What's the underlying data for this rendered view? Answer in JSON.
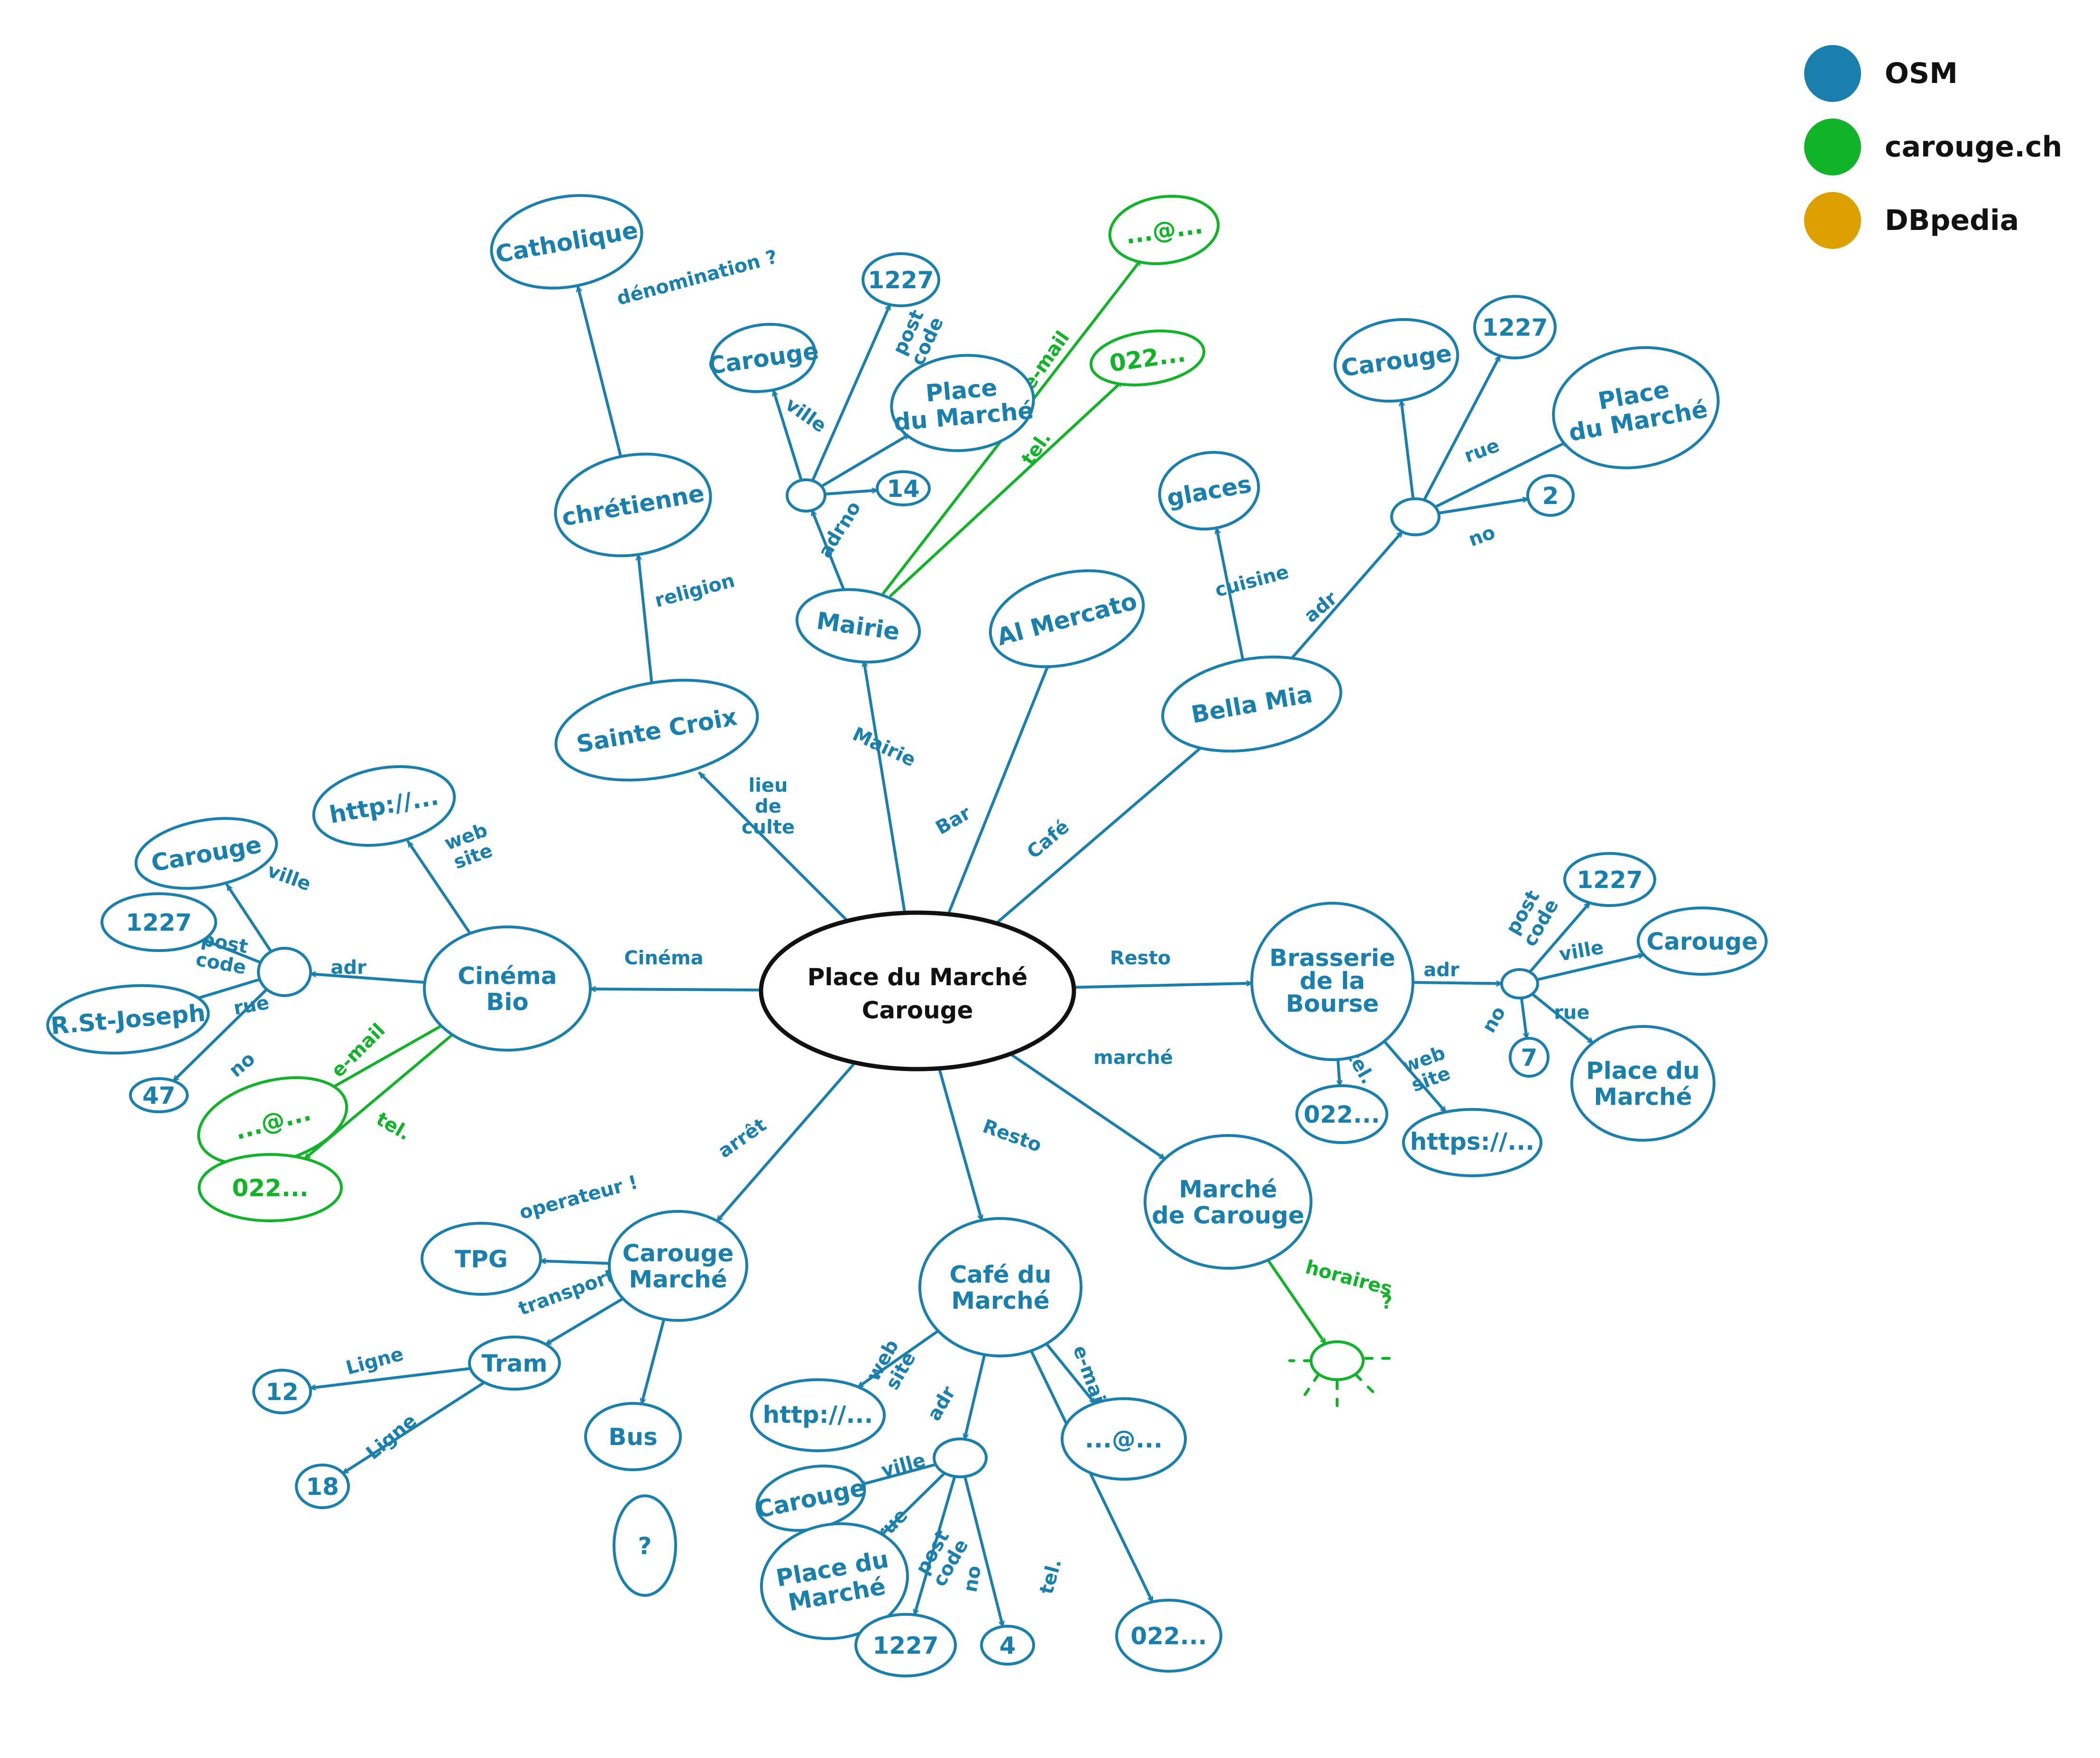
{
  "legend": [
    {
      "label": "OSM",
      "color": "#1a7fab"
    },
    {
      "label": "carouge.ch",
      "color": "#12b22b"
    },
    {
      "label": "DBpedia",
      "color": "#dba000"
    }
  ],
  "colors": {
    "blue": "#1a7fab",
    "green": "#12b22b",
    "center": "#111111"
  },
  "nodes": {
    "center": "Place du Marché\nCarouge",
    "sainte_croix": "Sainte Croix",
    "chretienne": "chrétienne",
    "catholique": "Catholique",
    "mairie": "Mairie",
    "mairie_adr": "",
    "mairie_ville": "Carouge",
    "mairie_postcode": "1227",
    "mairie_rue": "Place\ndu Marché",
    "mairie_no": "14",
    "mairie_email": "...@...",
    "mairie_tel": "022...",
    "al_mercato": "Al Mercato",
    "bella_mia": "Bella Mia",
    "glaces": "glaces",
    "bella_adr": "",
    "bella_ville": "Carouge",
    "bella_postcode": "1227",
    "bella_rue": "Place\ndu Marché",
    "bella_no": "2",
    "brasserie": "Brasserie\nde la\nBourse",
    "brasserie_adr": "",
    "brasserie_postcode": "1227",
    "brasserie_ville": "Carouge",
    "brasserie_rue": "Place du\nMarché",
    "brasserie_no": "7",
    "brasserie_tel": "022...",
    "brasserie_web": "https://...",
    "marche_carouge": "Marché\nde Carouge",
    "horaires_sun": "",
    "cafe_marche": "Café du\nMarché",
    "cafe_web": "http://...",
    "cafe_adr": "",
    "cafe_ville": "Carouge",
    "cafe_rue": "Place du\nMarché",
    "cafe_postcode": "1227",
    "cafe_no": "4",
    "cafe_tel": "022...",
    "cafe_email": "...@...",
    "arret": "Carouge\nMarché",
    "tpg": "TPG",
    "tram": "Tram",
    "bus": "Bus",
    "bus_unknown": "?",
    "ligne12": "12",
    "ligne18": "18",
    "cinema": "Cinéma\nBio",
    "cinema_web": "http://...",
    "cinema_adr": "",
    "cinema_ville": "Carouge",
    "cinema_postcode": "1227",
    "cinema_rue": "R.St-Joseph",
    "cinema_no": "47",
    "cinema_email": "...@...",
    "cinema_tel": "022..."
  },
  "edges": {
    "lieu_de_culte": "lieu\nde\nculte",
    "religion": "religion",
    "denomination": "dénomination ?",
    "mairie": "Mairie",
    "adr": "adr",
    "ville": "ville",
    "post_code": "post\ncode",
    "rue": "rue",
    "no": "no",
    "email": "e-mail",
    "tel": "tel.",
    "bar": "Bar",
    "cafe": "Café",
    "cuisine": "cuisine",
    "resto": "Resto",
    "marche": "marché",
    "horaires": "horaires",
    "horaires_q": "?",
    "arret": "arrêt",
    "operateur": "operateur !",
    "transport": "transport",
    "ligne": "Ligne",
    "web_site": "web\nsite",
    "cinema": "Cinéma"
  }
}
